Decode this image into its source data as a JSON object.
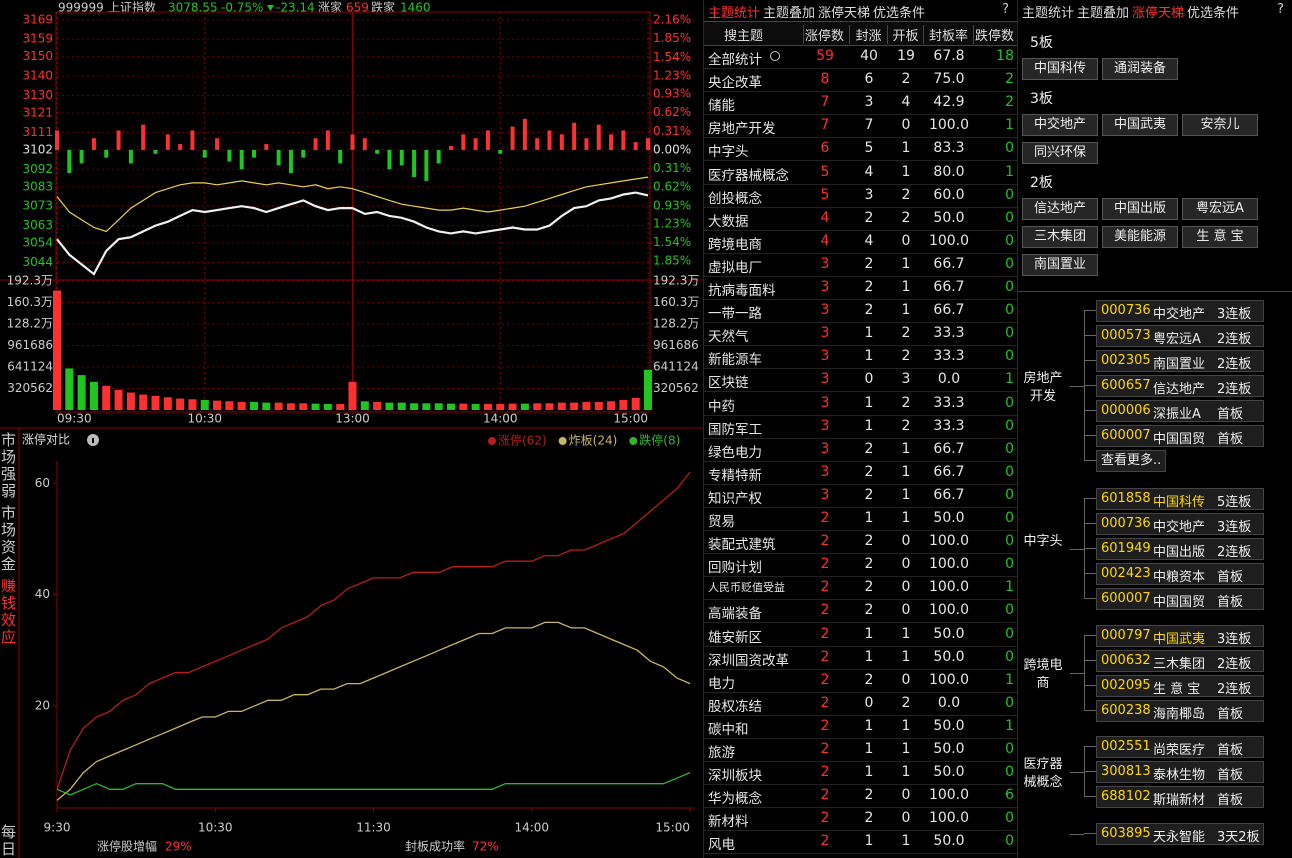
{
  "header": {
    "code": "999999",
    "name": "上证指数",
    "price": "3078.55",
    "pct": "-0.75%",
    "change": "-23.14",
    "up_label": "涨家",
    "up": "659",
    "down_label": "跌家",
    "down": "1460"
  },
  "intraday": {
    "categories": [
      "09:30",
      null,
      null,
      null,
      null,
      null,
      null,
      null,
      null,
      null,
      null,
      null,
      "10:30",
      null,
      null,
      null,
      null,
      null,
      null,
      null,
      null,
      null,
      null,
      null,
      "13:00",
      null,
      null,
      null,
      null,
      null,
      null,
      null,
      null,
      null,
      null,
      null,
      "14:00",
      null,
      null,
      null,
      null,
      null,
      null,
      null,
      null,
      null,
      null,
      null,
      "15:00"
    ],
    "ylim": [
      3036,
      3172
    ],
    "yticks": [
      3169,
      3159,
      3150,
      3140,
      3130,
      3121,
      3111,
      3102,
      3092,
      3083,
      3073,
      3063,
      3054,
      3044
    ],
    "y2lim": [
      -2.13,
      2.26
    ],
    "y2ticks": [
      {
        "value": 2.16,
        "label": "2.16%"
      },
      {
        "value": 1.85,
        "label": "1.85%"
      },
      {
        "value": 1.54,
        "label": "1.54%"
      },
      {
        "value": 1.23,
        "label": "1.23%"
      },
      {
        "value": 0.93,
        "label": "0.93%"
      },
      {
        "value": 0.62,
        "label": "0.62%"
      },
      {
        "value": 0.31,
        "label": "0.31%"
      },
      {
        "value": 0,
        "label": "0.00%"
      },
      {
        "value": -0.31,
        "label": "0.31%"
      },
      {
        "value": -0.62,
        "label": "0.62%"
      },
      {
        "value": -0.93,
        "label": "0.93%"
      },
      {
        "value": -1.23,
        "label": "1.23%"
      },
      {
        "value": -1.54,
        "label": "1.54%"
      },
      {
        "value": -1.85,
        "label": "1.85%"
      }
    ],
    "up_color": "#ff3030",
    "down_color": "#22c422",
    "flat_color": "#e0e0e0",
    "price": {
      "color": "#f0f0f0",
      "values": [
        3056,
        3048,
        3043,
        3038,
        3050,
        3056,
        3057,
        3060,
        3063,
        3065,
        3068,
        3071,
        3070,
        3071,
        3072,
        3073,
        3072,
        3070,
        3072,
        3074,
        3076,
        3073,
        3071,
        3072,
        3072,
        3069,
        3070,
        3068,
        3067,
        3065,
        3062,
        3060,
        3059,
        3060,
        3059,
        3060,
        3061,
        3062,
        3061,
        3061,
        3063,
        3068,
        3072,
        3073,
        3076,
        3077,
        3079,
        3080,
        3078.55
      ]
    },
    "average": {
      "color": "#e8d24a",
      "values": [
        3078,
        3070,
        3066,
        3062,
        3060,
        3066,
        3072,
        3076,
        3080,
        3082,
        3084,
        3085,
        3085,
        3084,
        3085,
        3086,
        3085,
        3084,
        3085,
        3084,
        3083,
        3084,
        3082,
        3083,
        3082,
        3080,
        3078,
        3076,
        3074,
        3073,
        3072,
        3071,
        3071,
        3072,
        3071,
        3070,
        3071,
        3072,
        3073,
        3075,
        3077,
        3079,
        3081,
        3083,
        3084,
        3085,
        3086,
        3087,
        3088
      ]
    },
    "breadth": [
      3112,
      3090,
      3095,
      3108,
      3098,
      3112,
      3095,
      3115,
      3100,
      3110,
      3105,
      3112,
      3098,
      3108,
      3096,
      3092,
      3098,
      3105,
      3094,
      3090,
      3098,
      3108,
      3112,
      3095,
      3110,
      3108,
      3100,
      3092,
      3094,
      3088,
      3086,
      3095,
      3104,
      3110,
      3108,
      3112,
      3100,
      3114,
      3118,
      3108,
      3112,
      3110,
      3116,
      3108,
      3115,
      3110,
      3112,
      3106,
      3108
    ],
    "vlim": [
      0,
      1923000
    ],
    "vticks": [
      {
        "value": 1923000,
        "label": "192.3万"
      },
      {
        "value": 1603000,
        "label": "160.3万"
      },
      {
        "value": 1282000,
        "label": "128.2万"
      },
      961686,
      641124,
      320562
    ],
    "volume": [
      1780000,
      620000,
      520000,
      420000,
      360000,
      300000,
      260000,
      230000,
      210000,
      190000,
      170000,
      160000,
      150000,
      140000,
      130000,
      120000,
      120000,
      110000,
      110000,
      100000,
      100000,
      95000,
      90000,
      90000,
      420000,
      130000,
      120000,
      110000,
      110000,
      100000,
      100000,
      100000,
      95000,
      95000,
      90000,
      90000,
      90000,
      95000,
      95000,
      100000,
      100000,
      110000,
      110000,
      120000,
      120000,
      130000,
      150000,
      180000,
      600000
    ]
  },
  "side_tabs": [
    "市场强弱",
    "市场资金",
    "赚钱效应",
    "每日"
  ],
  "limit_chart": {
    "type": "line",
    "title": "涨停对比",
    "categories": [
      "9:30",
      null,
      null,
      null,
      null,
      null,
      null,
      null,
      null,
      null,
      null,
      null,
      "10:30",
      null,
      null,
      null,
      null,
      null,
      null,
      null,
      null,
      null,
      null,
      null,
      "11:30",
      null,
      null,
      null,
      null,
      null,
      null,
      null,
      null,
      null,
      null,
      null,
      "14:00",
      null,
      null,
      null,
      null,
      null,
      null,
      null,
      null,
      null,
      null,
      null,
      "15:00"
    ],
    "ylim": [
      2,
      64
    ],
    "yticks": [
      20,
      40,
      60
    ],
    "series": [
      {
        "name": "涨停(62)",
        "color": "#b81c1c",
        "values": [
          5,
          12,
          16,
          18,
          19,
          21,
          22,
          24,
          25,
          26,
          26,
          27,
          28,
          29,
          30,
          31,
          32,
          34,
          35,
          36,
          38,
          39,
          41,
          42,
          43,
          43,
          43,
          44,
          44,
          44,
          45,
          45,
          45,
          45,
          46,
          46,
          46,
          47,
          47,
          48,
          48,
          49,
          50,
          51,
          53,
          55,
          57,
          59,
          62
        ]
      },
      {
        "name": "炸板(24)",
        "color": "#c8b560",
        "values": [
          3,
          5,
          8,
          10,
          11,
          12,
          13,
          14,
          15,
          16,
          17,
          18,
          18,
          19,
          19,
          20,
          21,
          21,
          22,
          22,
          23,
          23,
          24,
          24,
          25,
          26,
          27,
          28,
          29,
          30,
          31,
          32,
          33,
          33,
          34,
          34,
          34,
          35,
          35,
          34,
          34,
          33,
          32,
          31,
          30,
          28,
          27,
          25,
          24
        ]
      },
      {
        "name": "跌停(8)",
        "color": "#2fb52f",
        "values": [
          5,
          4,
          5,
          6,
          5,
          5,
          6,
          6,
          6,
          5,
          5,
          5,
          5,
          5,
          5,
          5,
          5,
          5,
          5,
          5,
          5,
          5,
          5,
          5,
          5,
          5,
          5,
          5,
          5,
          5,
          5,
          5,
          5,
          5,
          6,
          6,
          6,
          6,
          6,
          6,
          6,
          6,
          6,
          6,
          6,
          6,
          6,
          7,
          8
        ]
      }
    ],
    "footer": [
      {
        "label": "涨停股增幅",
        "value": "29%"
      },
      {
        "label": "封板成功率",
        "value": "72%"
      }
    ]
  },
  "theme_table": {
    "tabs": [
      "主题统计",
      "主题叠加",
      "涨停天梯",
      "优选条件"
    ],
    "help": "?",
    "columns": [
      "搜主题",
      "涨停数",
      "封涨",
      "开板",
      "封板率",
      "跌停数"
    ],
    "rows": [
      [
        "全部统计",
        59,
        40,
        19,
        "67.8",
        18
      ],
      [
        "央企改革",
        8,
        6,
        2,
        "75.0",
        2
      ],
      [
        "储能",
        7,
        3,
        4,
        "42.9",
        2
      ],
      [
        "房地产开发",
        7,
        7,
        0,
        "100.0",
        1
      ],
      [
        "中字头",
        6,
        5,
        1,
        "83.3",
        0
      ],
      [
        "医疗器械概念",
        5,
        4,
        1,
        "80.0",
        1
      ],
      [
        "创投概念",
        5,
        3,
        2,
        "60.0",
        0
      ],
      [
        "大数据",
        4,
        2,
        2,
        "50.0",
        0
      ],
      [
        "跨境电商",
        4,
        4,
        0,
        "100.0",
        0
      ],
      [
        "虚拟电厂",
        3,
        2,
        1,
        "66.7",
        0
      ],
      [
        "抗病毒面料",
        3,
        2,
        1,
        "66.7",
        0
      ],
      [
        "一带一路",
        3,
        2,
        1,
        "66.7",
        0
      ],
      [
        "天然气",
        3,
        1,
        2,
        "33.3",
        0
      ],
      [
        "新能源车",
        3,
        1,
        2,
        "33.3",
        0
      ],
      [
        "区块链",
        3,
        0,
        3,
        "0.0",
        1
      ],
      [
        "中药",
        3,
        1,
        2,
        "33.3",
        0
      ],
      [
        "国防军工",
        3,
        1,
        2,
        "33.3",
        0
      ],
      [
        "绿色电力",
        3,
        2,
        1,
        "66.7",
        0
      ],
      [
        "专精特新",
        3,
        2,
        1,
        "66.7",
        0
      ],
      [
        "知识产权",
        3,
        2,
        1,
        "66.7",
        0
      ],
      [
        "贸易",
        2,
        1,
        1,
        "50.0",
        0
      ],
      [
        "装配式建筑",
        2,
        2,
        0,
        "100.0",
        0
      ],
      [
        "回购计划",
        2,
        2,
        0,
        "100.0",
        0
      ],
      [
        "人民币贬值受益",
        2,
        2,
        0,
        "100.0",
        1
      ],
      [
        "高端装备",
        2,
        2,
        0,
        "100.0",
        0
      ],
      [
        "雄安新区",
        2,
        1,
        1,
        "50.0",
        0
      ],
      [
        "深圳国资改革",
        2,
        1,
        1,
        "50.0",
        0
      ],
      [
        "电力",
        2,
        2,
        0,
        "100.0",
        1
      ],
      [
        "股权冻结",
        2,
        0,
        2,
        "0.0",
        0
      ],
      [
        "碳中和",
        2,
        1,
        1,
        "50.0",
        1
      ],
      [
        "旅游",
        2,
        1,
        1,
        "50.0",
        0
      ],
      [
        "深圳板块",
        2,
        1,
        1,
        "50.0",
        0
      ],
      [
        "华为概念",
        2,
        2,
        0,
        "100.0",
        6
      ],
      [
        "新材料",
        2,
        2,
        0,
        "100.0",
        0
      ],
      [
        "风电",
        2,
        1,
        1,
        "50.0",
        0
      ]
    ]
  },
  "ladder": {
    "tabs": [
      "主题统计",
      "主题叠加",
      "涨停天梯",
      "优选条件"
    ],
    "help": "?",
    "levels": [
      {
        "label": "5板",
        "stocks": [
          "中国科传",
          "通润装备"
        ]
      },
      {
        "label": "3板",
        "stocks": [
          "中交地产",
          "中国武夷",
          "安奈儿",
          "同兴环保"
        ]
      },
      {
        "label": "2板",
        "stocks": [
          "信达地产",
          "中国出版",
          "粤宏远A",
          "三木集团",
          "美能能源",
          "生 意 宝",
          "南国置业"
        ]
      }
    ],
    "groups": [
      {
        "theme": "房地产开发",
        "stocks": [
          [
            "000736",
            "中交地产",
            "3连板"
          ],
          [
            "000573",
            "粤宏远A",
            "2连板"
          ],
          [
            "002305",
            "南国置业",
            "2连板"
          ],
          [
            "600657",
            "信达地产",
            "2连板"
          ],
          [
            "000006",
            "深振业A",
            "首板"
          ],
          [
            "600007",
            "中国国贸",
            "首板"
          ]
        ],
        "more": "查看更多.."
      },
      {
        "theme": "中字头",
        "stocks": [
          [
            "601858",
            "中国科传",
            "5连板"
          ],
          [
            "000736",
            "中交地产",
            "3连板"
          ],
          [
            "601949",
            "中国出版",
            "2连板"
          ],
          [
            "002423",
            "中粮资本",
            "首板"
          ],
          [
            "600007",
            "中国国贸",
            "首板"
          ]
        ]
      },
      {
        "theme": "跨境电商",
        "stocks": [
          [
            "000797",
            "中国武夷",
            "3连板"
          ],
          [
            "000632",
            "三木集团",
            "2连板"
          ],
          [
            "002095",
            "生 意 宝",
            "2连板"
          ],
          [
            "600238",
            "海南椰岛",
            "首板"
          ]
        ]
      },
      {
        "theme": "医疗器械概念",
        "stocks": [
          [
            "002551",
            "尚荣医疗",
            "首板"
          ],
          [
            "300813",
            "泰林生物",
            "首板"
          ],
          [
            "688102",
            "斯瑞新材",
            "首板"
          ]
        ]
      },
      {
        "stocks": [
          [
            "603895",
            "天永智能",
            "3天2板"
          ]
        ]
      }
    ]
  }
}
